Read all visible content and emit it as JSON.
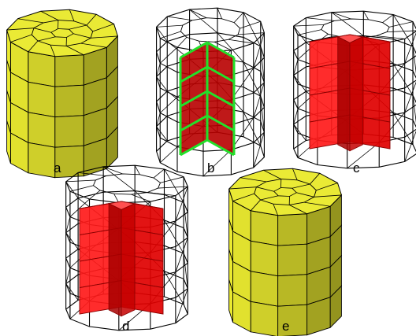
{
  "figure": {
    "description_labels": [
      "a",
      "b",
      "c",
      "d",
      "e"
    ],
    "panels": [
      {
        "id": "a",
        "label": "a",
        "mode": "solid",
        "fill": "#eaea35"
      },
      {
        "id": "b",
        "label": "b",
        "mode": "wireframe-with-green-surface",
        "surface": "#b80000",
        "outline": "#22e02a"
      },
      {
        "id": "c",
        "label": "c",
        "mode": "wireframe-with-red-block",
        "fill": "#ff1a1a"
      },
      {
        "id": "d",
        "label": "d",
        "mode": "wireframe-with-red-block",
        "fill": "#ff1a1a"
      },
      {
        "id": "e",
        "label": "e",
        "mode": "solid",
        "fill": "#eaea35"
      }
    ],
    "colors": {
      "yellow": "#eaea35",
      "yellow_dark": "#a8a820",
      "red": "#ff1a1a",
      "red_dark": "#8a0000",
      "green": "#22e02a",
      "wire": "#000000"
    }
  }
}
